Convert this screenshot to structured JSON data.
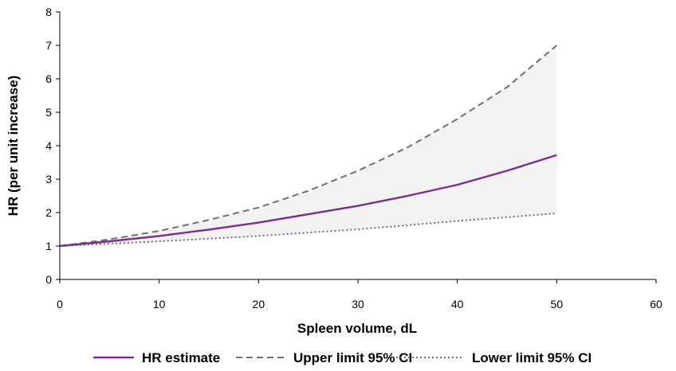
{
  "chart_data": {
    "type": "line",
    "title": "",
    "xlabel": "Spleen volume, dL",
    "ylabel": "HR (per unit increase)",
    "xlim": [
      0,
      60
    ],
    "ylim": [
      0,
      8
    ],
    "xticks": [
      0,
      10,
      20,
      30,
      40,
      50,
      60
    ],
    "yticks": [
      0,
      1,
      2,
      3,
      4,
      5,
      6,
      7,
      8
    ],
    "grid": false,
    "legend_position": "bottom",
    "shaded_confidence_band": true,
    "band_color": "#f2f2f2",
    "x": [
      0,
      5,
      10,
      15,
      20,
      25,
      30,
      35,
      40,
      45,
      50
    ],
    "series": [
      {
        "name": "HR estimate",
        "style": "solid",
        "color": "#7b2d8e",
        "values": [
          1.0,
          1.14,
          1.3,
          1.49,
          1.7,
          1.95,
          2.2,
          2.5,
          2.83,
          3.25,
          3.72
        ]
      },
      {
        "name": "Upper limit 95% CI",
        "style": "dashed",
        "color": "#707070",
        "values": [
          1.0,
          1.2,
          1.45,
          1.78,
          2.15,
          2.65,
          3.25,
          3.95,
          4.8,
          5.75,
          7.0
        ]
      },
      {
        "name": "Lower limit 95% CI",
        "style": "dotted",
        "color": "#707070",
        "values": [
          1.0,
          1.07,
          1.14,
          1.22,
          1.3,
          1.4,
          1.5,
          1.62,
          1.75,
          1.86,
          1.98
        ]
      }
    ]
  }
}
